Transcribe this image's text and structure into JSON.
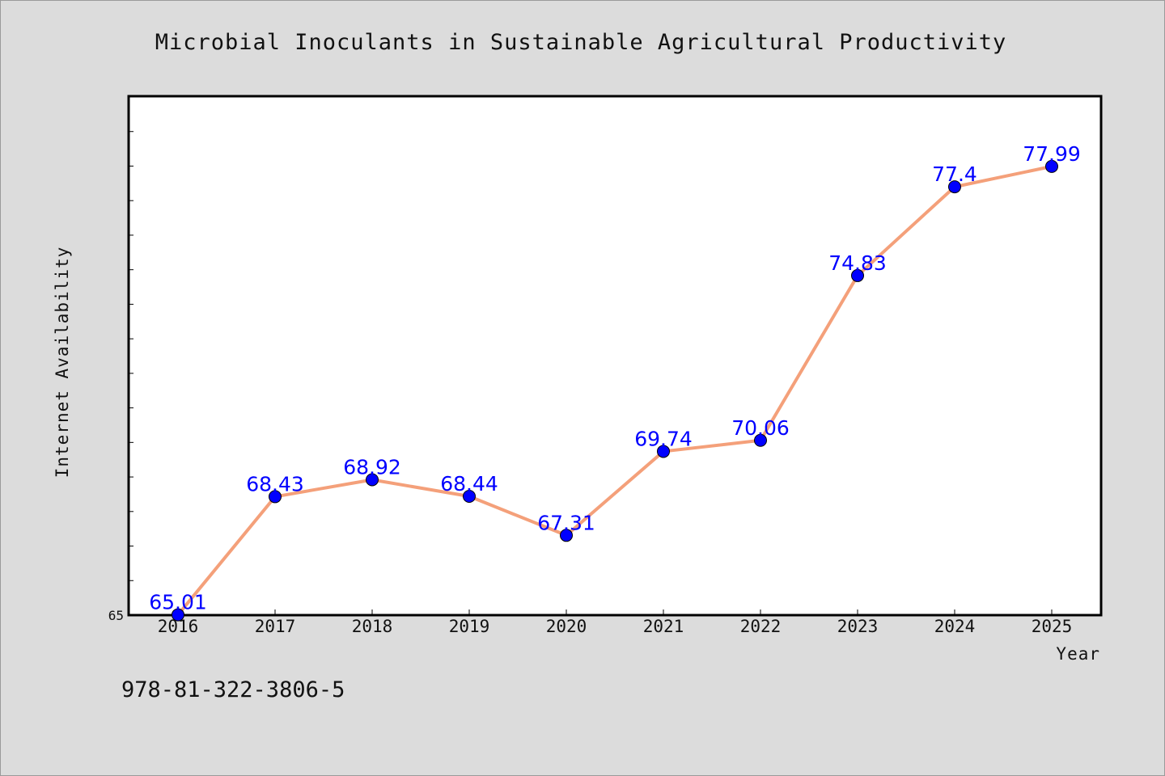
{
  "chart_data": {
    "type": "line",
    "title": "Microbial Inoculants in Sustainable Agricultural Productivity",
    "xlabel": "Year",
    "ylabel": "Internet Availability",
    "categories": [
      "2016",
      "2017",
      "2018",
      "2019",
      "2020",
      "2021",
      "2022",
      "2023",
      "2024",
      "2025"
    ],
    "series": [
      {
        "values": [
          65.01,
          68.43,
          68.92,
          68.44,
          67.31,
          69.74,
          70.06,
          74.83,
          77.4,
          77.99
        ],
        "labels": [
          "65.01",
          "68.43",
          "68.92",
          "68.44",
          "67.31",
          "69.74",
          "70.06",
          "74.83",
          "77.4",
          "77.99"
        ],
        "line_color": "#f4a07a",
        "marker_color": "#0000ff"
      }
    ],
    "ylim": [
      65,
      80
    ],
    "y_tick_label": "65",
    "grid": false,
    "legend": "none"
  },
  "footer_text": "978-81-322-3806-5",
  "colors": {
    "background": "#dcdcdc",
    "plot_background": "#ffffff",
    "data_label": "#0000ff"
  }
}
